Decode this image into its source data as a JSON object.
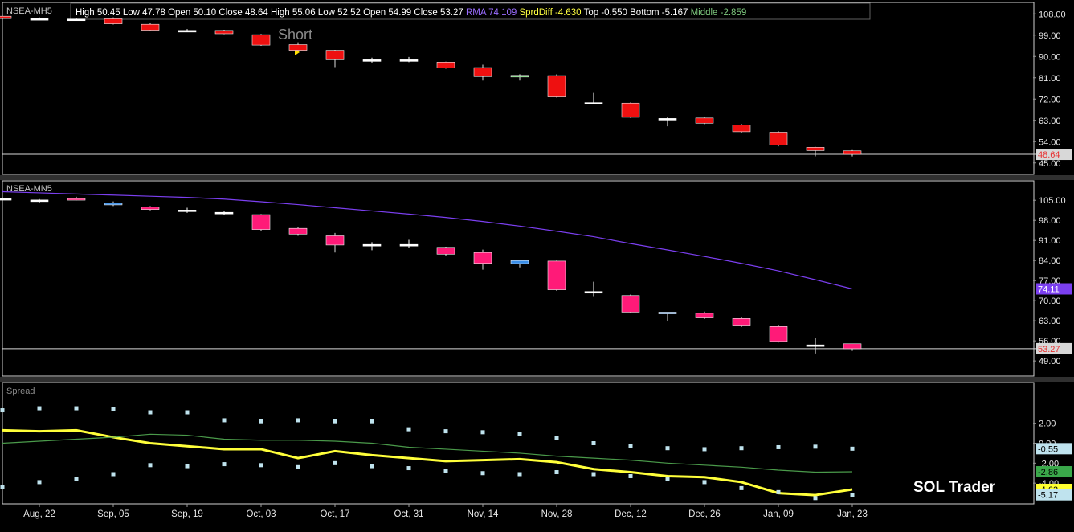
{
  "info_bar": {
    "items": [
      {
        "label": "High",
        "value": "50.45",
        "color": "#ffffff"
      },
      {
        "label": "Low",
        "value": "47.78",
        "color": "#ffffff"
      },
      {
        "label": "Open",
        "value": "50.10",
        "color": "#ffffff"
      },
      {
        "label": "Close",
        "value": "48.64",
        "color": "#ffffff"
      },
      {
        "label": "High",
        "value": "55.06",
        "color": "#ffffff"
      },
      {
        "label": "Low",
        "value": "52.52",
        "color": "#ffffff"
      },
      {
        "label": "Open",
        "value": "54.99",
        "color": "#ffffff"
      },
      {
        "label": "Close",
        "value": "53.27",
        "color": "#ffffff"
      },
      {
        "label": "RMA",
        "value": "74.109",
        "color": "#9a6cff"
      },
      {
        "label": "SprdDiff",
        "value": "-4.630",
        "color": "#ffff40"
      },
      {
        "label": "Top",
        "value": "-0.550",
        "color": "#ffffff"
      },
      {
        "label": "Bottom",
        "value": "-5.167",
        "color": "#ffffff"
      },
      {
        "label": "Middle",
        "value": "-2.859",
        "color": "#7ec87e"
      }
    ]
  },
  "annotations": {
    "short_label": "Short",
    "watermark": "SOL Trader"
  },
  "chart_data": [
    {
      "type": "candlestick",
      "name": "NSEA-MH5",
      "ylim": [
        40.5,
        112.5
      ],
      "y_ticks": [
        45,
        54,
        63,
        72,
        81,
        90,
        99,
        108
      ],
      "y_tick_labels": [
        "45.00",
        "54.00",
        "63.00",
        "72.00",
        "81.00",
        "90.00",
        "99.00",
        "108.00"
      ],
      "last_value": 48.64,
      "last_label": "48.64",
      "up_color": "#3ecf3e",
      "down_color": "#ee1010",
      "candles": [
        {
          "o": 107.0,
          "h": 107.5,
          "l": 106.5,
          "c": 106.0
        },
        {
          "o": 106.0,
          "h": 106.5,
          "l": 105.8,
          "c": 106.0
        },
        {
          "o": 105.8,
          "h": 106.3,
          "l": 105.2,
          "c": 105.6
        },
        {
          "o": 105.9,
          "h": 106.5,
          "l": 103.5,
          "c": 103.8
        },
        {
          "o": 103.6,
          "h": 104.0,
          "l": 100.9,
          "c": 101.1
        },
        {
          "o": 101.0,
          "h": 101.6,
          "l": 100.4,
          "c": 101.0
        },
        {
          "o": 101.0,
          "h": 101.3,
          "l": 99.4,
          "c": 99.6
        },
        {
          "o": 99.2,
          "h": 99.5,
          "l": 94.5,
          "c": 94.8
        },
        {
          "o": 95.0,
          "h": 96.0,
          "l": 92.2,
          "c": 92.6
        },
        {
          "o": 92.6,
          "h": 92.8,
          "l": 85.5,
          "c": 88.6
        },
        {
          "o": 88.6,
          "h": 89.5,
          "l": 87.4,
          "c": 88.6
        },
        {
          "o": 88.6,
          "h": 89.8,
          "l": 87.6,
          "c": 88.6
        },
        {
          "o": 87.6,
          "h": 87.8,
          "l": 84.8,
          "c": 85.1
        },
        {
          "o": 85.3,
          "h": 86.5,
          "l": 79.8,
          "c": 81.5
        },
        {
          "o": 81.5,
          "h": 82.5,
          "l": 79.8,
          "c": 82.0
        },
        {
          "o": 81.9,
          "h": 82.5,
          "l": 72.6,
          "c": 72.9
        },
        {
          "o": 70.5,
          "h": 74.6,
          "l": 69.9,
          "c": 70.5
        },
        {
          "o": 70.3,
          "h": 70.6,
          "l": 64.0,
          "c": 64.3
        },
        {
          "o": 63.8,
          "h": 64.6,
          "l": 60.5,
          "c": 63.8
        },
        {
          "o": 64.0,
          "h": 64.6,
          "l": 61.4,
          "c": 61.8
        },
        {
          "o": 61.0,
          "h": 61.5,
          "l": 57.7,
          "c": 58.2
        },
        {
          "o": 58.0,
          "h": 58.4,
          "l": 52.0,
          "c": 52.6
        },
        {
          "o": 51.6,
          "h": 51.8,
          "l": 47.8,
          "c": 50.2
        },
        {
          "o": 50.1,
          "h": 50.45,
          "l": 47.78,
          "c": 48.64
        }
      ]
    },
    {
      "type": "candlestick",
      "name": "NSEA-MN5",
      "ylim": [
        44.0,
        111.5
      ],
      "y_ticks": [
        49,
        56,
        63,
        70,
        77,
        84,
        91,
        98,
        105
      ],
      "y_tick_labels": [
        "49.00",
        "56.00",
        "63.00",
        "70.00",
        "77.00",
        "84.00",
        "91.00",
        "98.00",
        "105.00"
      ],
      "last_value": 53.27,
      "last_label": "53.27",
      "rma_value": 74.11,
      "rma_label": "74.11",
      "up_color": "#3a8ee8",
      "down_color": "#ff1a78",
      "rma_color": "#7b3ff0",
      "candles": [
        {
          "o": 105.6,
          "h": 106.0,
          "l": 105.0,
          "c": 105.2
        },
        {
          "o": 104.8,
          "h": 105.4,
          "l": 104.2,
          "c": 105.1
        },
        {
          "o": 105.6,
          "h": 106.2,
          "l": 105.0,
          "c": 105.1
        },
        {
          "o": 103.4,
          "h": 104.6,
          "l": 103.0,
          "c": 104.0
        },
        {
          "o": 102.6,
          "h": 103.0,
          "l": 101.5,
          "c": 101.8
        },
        {
          "o": 101.2,
          "h": 102.4,
          "l": 100.6,
          "c": 101.6
        },
        {
          "o": 100.8,
          "h": 101.2,
          "l": 99.8,
          "c": 100.4
        },
        {
          "o": 100.0,
          "h": 100.2,
          "l": 94.4,
          "c": 94.8
        },
        {
          "o": 95.2,
          "h": 95.6,
          "l": 92.6,
          "c": 93.2
        },
        {
          "o": 92.6,
          "h": 93.6,
          "l": 86.8,
          "c": 89.4
        },
        {
          "o": 89.6,
          "h": 90.4,
          "l": 87.6,
          "c": 89.6
        },
        {
          "o": 89.6,
          "h": 91.2,
          "l": 88.4,
          "c": 89.6
        },
        {
          "o": 88.6,
          "h": 88.8,
          "l": 85.6,
          "c": 86.2
        },
        {
          "o": 86.8,
          "h": 87.8,
          "l": 80.8,
          "c": 83.0
        },
        {
          "o": 82.9,
          "h": 83.8,
          "l": 81.6,
          "c": 84.0
        },
        {
          "o": 83.8,
          "h": 84.0,
          "l": 73.4,
          "c": 73.8
        },
        {
          "o": 73.0,
          "h": 76.6,
          "l": 71.6,
          "c": 73.2
        },
        {
          "o": 71.8,
          "h": 72.2,
          "l": 65.6,
          "c": 66.0
        },
        {
          "o": 65.4,
          "h": 66.0,
          "l": 62.8,
          "c": 66.0
        },
        {
          "o": 65.6,
          "h": 66.2,
          "l": 63.6,
          "c": 64.0
        },
        {
          "o": 63.8,
          "h": 64.2,
          "l": 60.8,
          "c": 61.2
        },
        {
          "o": 61.0,
          "h": 61.4,
          "l": 55.4,
          "c": 55.8
        },
        {
          "o": 54.6,
          "h": 57.0,
          "l": 51.6,
          "c": 54.4
        },
        {
          "o": 54.99,
          "h": 55.06,
          "l": 52.52,
          "c": 53.27
        }
      ],
      "rma": [
        108.0,
        107.6,
        107.2,
        106.8,
        106.4,
        106.0,
        105.4,
        104.5,
        103.5,
        102.4,
        101.3,
        100.2,
        99.0,
        97.6,
        96.0,
        94.2,
        92.3,
        89.9,
        87.7,
        85.4,
        83.0,
        80.4,
        77.3,
        74.11
      ]
    },
    {
      "type": "line",
      "name": "Spread",
      "ylim": [
        -6.0,
        6.0
      ],
      "y_ticks": [
        -4,
        -2,
        0,
        2
      ],
      "y_tick_labels": [
        "-4.00",
        "-2.00",
        "0.00",
        "2.00"
      ],
      "right_labels": [
        {
          "value": -0.55,
          "label": "-0.55",
          "bg": "#bfe3ee",
          "fg": "#000000"
        },
        {
          "value": -2.86,
          "label": "-2.86",
          "bg": "#3aa84a",
          "fg": "#000000"
        },
        {
          "value": -4.63,
          "label": "-4.63",
          "bg": "#ffff30",
          "fg": "#000000"
        },
        {
          "value": -5.17,
          "label": "-5.17",
          "bg": "#bfe3ee",
          "fg": "#000000"
        }
      ],
      "series": [
        {
          "name": "SprdDiff",
          "color": "#ffff3a",
          "values": [
            1.3,
            1.2,
            1.3,
            0.6,
            0.0,
            -0.3,
            -0.6,
            -0.6,
            -1.5,
            -0.8,
            -1.2,
            -1.5,
            -1.8,
            -1.7,
            -1.6,
            -1.9,
            -2.6,
            -2.9,
            -3.3,
            -3.4,
            -3.9,
            -5.0,
            -5.2,
            -4.63
          ]
        },
        {
          "name": "Middle",
          "color": "#4a9a4a",
          "values": [
            0.0,
            0.2,
            0.4,
            0.6,
            0.9,
            0.8,
            0.4,
            0.3,
            0.3,
            0.2,
            0.0,
            -0.4,
            -0.6,
            -0.8,
            -1.0,
            -1.3,
            -1.5,
            -1.7,
            -2.0,
            -2.2,
            -2.4,
            -2.7,
            -2.9,
            -2.859
          ]
        },
        {
          "name": "Top",
          "color": "#bfe3ee",
          "values": [
            3.3,
            3.5,
            3.5,
            3.4,
            3.1,
            3.1,
            2.3,
            2.2,
            2.3,
            2.2,
            2.2,
            1.4,
            1.2,
            1.1,
            0.9,
            0.5,
            0.0,
            -0.3,
            -0.5,
            -0.6,
            -0.5,
            -0.4,
            -0.35,
            -0.55
          ]
        },
        {
          "name": "Bottom",
          "color": "#bfe3ee",
          "values": [
            -4.4,
            -3.9,
            -3.6,
            -3.1,
            -2.2,
            -2.3,
            -2.1,
            -2.2,
            -2.4,
            -2.0,
            -2.3,
            -2.5,
            -2.8,
            -3.0,
            -3.1,
            -2.9,
            -3.1,
            -3.3,
            -3.6,
            -3.9,
            -4.5,
            -4.9,
            -5.5,
            -5.167
          ]
        }
      ]
    }
  ],
  "x_axis": {
    "labels": [
      {
        "text": "Aug, 22",
        "i": 1
      },
      {
        "text": "Sep, 05",
        "i": 3
      },
      {
        "text": "Sep, 19",
        "i": 5
      },
      {
        "text": "Oct, 03",
        "i": 7
      },
      {
        "text": "Oct, 17",
        "i": 9
      },
      {
        "text": "Oct, 31",
        "i": 11
      },
      {
        "text": "Nov, 14",
        "i": 13
      },
      {
        "text": "Nov, 28",
        "i": 15
      },
      {
        "text": "Dec, 12",
        "i": 17
      },
      {
        "text": "Dec, 26",
        "i": 19
      },
      {
        "text": "Jan, 09",
        "i": 21
      },
      {
        "text": "Jan, 23",
        "i": 23
      }
    ]
  }
}
